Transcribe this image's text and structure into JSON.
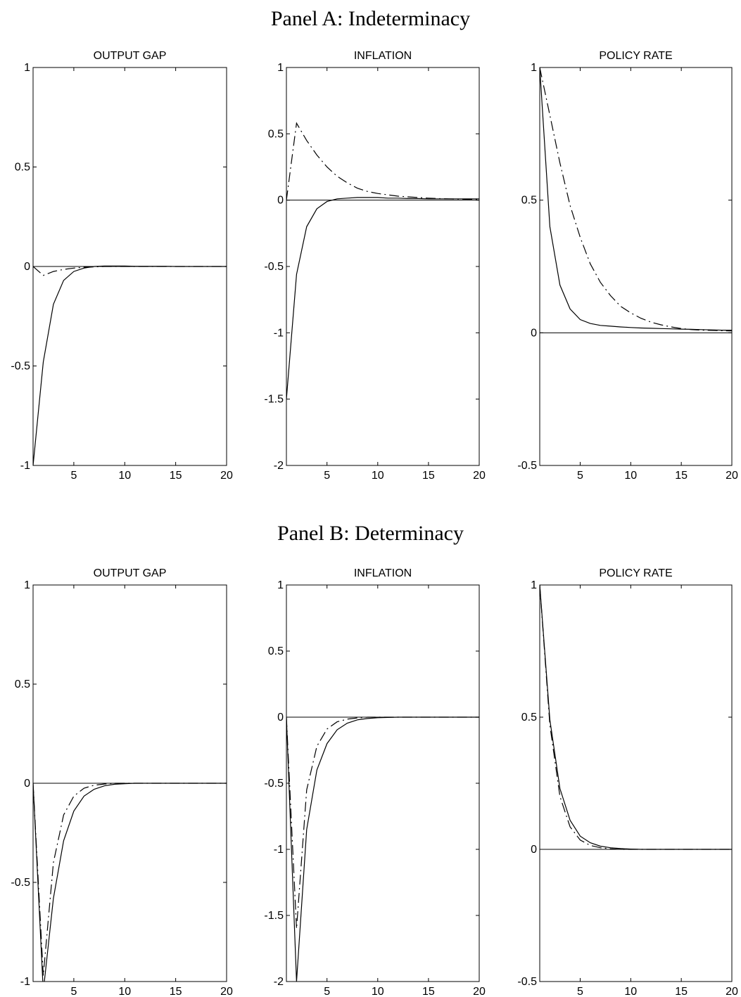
{
  "panels": [
    {
      "title": "Panel A: Indeterminacy"
    },
    {
      "title": "Panel B: Determinacy"
    }
  ],
  "chart_data": [
    {
      "type": "line",
      "panel": "Panel A: Indeterminacy",
      "title": "OUTPUT GAP",
      "xlim": [
        1,
        20
      ],
      "ylim": [
        -1,
        1
      ],
      "xticks": [
        5,
        10,
        15,
        20
      ],
      "yticks": [
        -1,
        -0.5,
        0,
        0.5,
        1
      ],
      "x": [
        1,
        2,
        3,
        4,
        5,
        6,
        7,
        8,
        9,
        10,
        11,
        12,
        13,
        14,
        15,
        16,
        17,
        18,
        19,
        20
      ],
      "series": [
        {
          "style": "solid",
          "values": [
            -1.0,
            -0.48,
            -0.19,
            -0.07,
            -0.025,
            -0.008,
            0,
            0.002,
            0.002,
            0.002,
            0.001,
            0.001,
            0.001,
            0.001,
            0,
            0,
            0,
            0,
            0,
            0
          ]
        },
        {
          "style": "dashdot",
          "values": [
            0,
            -0.045,
            -0.025,
            -0.015,
            -0.008,
            -0.004,
            -0.002,
            0,
            0,
            0,
            0,
            0,
            0,
            0,
            0,
            0,
            0,
            0,
            0,
            0
          ]
        }
      ]
    },
    {
      "type": "line",
      "panel": "Panel A: Indeterminacy",
      "title": "INFLATION",
      "xlim": [
        1,
        20
      ],
      "ylim": [
        -2,
        1
      ],
      "xticks": [
        5,
        10,
        15,
        20
      ],
      "yticks": [
        -2,
        -1.5,
        -1,
        -0.5,
        0,
        0.5,
        1
      ],
      "x": [
        1,
        2,
        3,
        4,
        5,
        6,
        7,
        8,
        9,
        10,
        11,
        12,
        13,
        14,
        15,
        16,
        17,
        18,
        19,
        20
      ],
      "series": [
        {
          "style": "solid",
          "values": [
            -1.5,
            -0.56,
            -0.2,
            -0.065,
            -0.01,
            0.01,
            0.015,
            0.02,
            0.02,
            0.02,
            0.015,
            0.015,
            0.012,
            0.012,
            0.01,
            0.01,
            0.01,
            0.01,
            0.01,
            0.01
          ]
        },
        {
          "style": "dashdot",
          "values": [
            0,
            0.58,
            0.45,
            0.34,
            0.25,
            0.18,
            0.13,
            0.09,
            0.065,
            0.05,
            0.04,
            0.03,
            0.025,
            0.02,
            0.015,
            0.012,
            0.01,
            0.008,
            0.006,
            0.005
          ]
        }
      ]
    },
    {
      "type": "line",
      "panel": "Panel A: Indeterminacy",
      "title": "POLICY RATE",
      "xlim": [
        1,
        20
      ],
      "ylim": [
        -0.5,
        1
      ],
      "xticks": [
        5,
        10,
        15,
        20
      ],
      "yticks": [
        -0.5,
        0,
        0.5,
        1
      ],
      "x": [
        1,
        2,
        3,
        4,
        5,
        6,
        7,
        8,
        9,
        10,
        11,
        12,
        13,
        14,
        15,
        16,
        17,
        18,
        19,
        20
      ],
      "series": [
        {
          "style": "solid",
          "values": [
            1.0,
            0.4,
            0.18,
            0.09,
            0.05,
            0.035,
            0.028,
            0.025,
            0.022,
            0.02,
            0.018,
            0.017,
            0.016,
            0.015,
            0.014,
            0.013,
            0.012,
            0.011,
            0.01,
            0.01
          ]
        },
        {
          "style": "dashdot",
          "values": [
            1.0,
            0.82,
            0.64,
            0.48,
            0.36,
            0.26,
            0.19,
            0.14,
            0.1,
            0.075,
            0.055,
            0.04,
            0.03,
            0.022,
            0.016,
            0.012,
            0.01,
            0.009,
            0.008,
            0.007
          ]
        }
      ]
    },
    {
      "type": "line",
      "panel": "Panel B: Determinacy",
      "title": "OUTPUT GAP",
      "xlim": [
        1,
        20
      ],
      "ylim": [
        -1,
        1
      ],
      "xticks": [
        5,
        10,
        15,
        20
      ],
      "yticks": [
        -1,
        -0.5,
        0,
        0.5,
        1
      ],
      "x": [
        1,
        2,
        3,
        4,
        5,
        6,
        7,
        8,
        9,
        10,
        11,
        12,
        13,
        14,
        15,
        16,
        17,
        18,
        19,
        20
      ],
      "series": [
        {
          "style": "solid",
          "values": [
            0,
            -1.05,
            -0.58,
            -0.29,
            -0.14,
            -0.065,
            -0.03,
            -0.013,
            -0.005,
            -0.002,
            0,
            0,
            0,
            0,
            0,
            0,
            0,
            0,
            0,
            0
          ]
        },
        {
          "style": "dashdot",
          "values": [
            0,
            -0.97,
            -0.4,
            -0.16,
            -0.065,
            -0.025,
            -0.01,
            -0.004,
            0,
            0,
            0,
            0,
            0,
            0,
            0,
            0,
            0,
            0,
            0,
            0
          ]
        }
      ]
    },
    {
      "type": "line",
      "panel": "Panel B: Determinacy",
      "title": "INFLATION",
      "xlim": [
        1,
        20
      ],
      "ylim": [
        -2,
        1
      ],
      "xticks": [
        5,
        10,
        15,
        20
      ],
      "yticks": [
        -2,
        -1.5,
        -1,
        -0.5,
        0,
        0.5,
        1
      ],
      "x": [
        1,
        2,
        3,
        4,
        5,
        6,
        7,
        8,
        9,
        10,
        11,
        12,
        13,
        14,
        15,
        16,
        17,
        18,
        19,
        20
      ],
      "series": [
        {
          "style": "solid",
          "values": [
            0,
            -2.0,
            -0.85,
            -0.4,
            -0.2,
            -0.095,
            -0.045,
            -0.02,
            -0.01,
            -0.004,
            -0.002,
            0,
            0,
            0,
            0,
            0,
            0,
            0,
            0,
            0
          ]
        },
        {
          "style": "dashdot",
          "values": [
            0,
            -1.6,
            -0.55,
            -0.22,
            -0.09,
            -0.035,
            -0.015,
            -0.006,
            0,
            0,
            0,
            0,
            0,
            0,
            0,
            0,
            0,
            0,
            0,
            0
          ]
        }
      ]
    },
    {
      "type": "line",
      "panel": "Panel B: Determinacy",
      "title": "POLICY RATE",
      "xlim": [
        1,
        20
      ],
      "ylim": [
        -0.5,
        1
      ],
      "xticks": [
        5,
        10,
        15,
        20
      ],
      "yticks": [
        -0.5,
        0,
        0.5,
        1
      ],
      "x": [
        1,
        2,
        3,
        4,
        5,
        6,
        7,
        8,
        9,
        10,
        11,
        12,
        13,
        14,
        15,
        16,
        17,
        18,
        19,
        20
      ],
      "series": [
        {
          "style": "solid",
          "values": [
            1.0,
            0.49,
            0.23,
            0.11,
            0.05,
            0.025,
            0.012,
            0.006,
            0.003,
            0.001,
            0,
            0,
            0,
            0,
            0,
            0,
            0,
            0,
            0,
            0
          ]
        },
        {
          "style": "dashdot",
          "values": [
            1.0,
            0.47,
            0.2,
            0.085,
            0.035,
            0.015,
            0.006,
            0.002,
            0,
            0,
            0,
            0,
            0,
            0,
            0,
            0,
            0,
            0,
            0,
            0
          ]
        }
      ]
    }
  ]
}
